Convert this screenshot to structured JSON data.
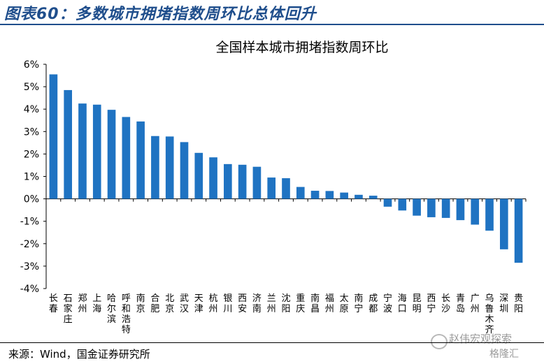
{
  "figure_title": "图表60：多数城市拥堵指数周环比总体回升",
  "source": "来源：Wind，国金证券研究所",
  "watermark": "赵伟宏观探索",
  "watermark2": "格隆汇",
  "colors": {
    "bar": "#1f73c2",
    "title": "#1f4e8c"
  },
  "chart_data": {
    "type": "bar",
    "title": "全国样本城市拥堵指数周环比",
    "xlabel": "",
    "ylabel": "",
    "ylim": [
      -4,
      6
    ],
    "yticks": [
      "6%",
      "5%",
      "4%",
      "3%",
      "2%",
      "1%",
      "0%",
      "-1%",
      "-2%",
      "-3%",
      "-4%"
    ],
    "grid": false,
    "categories": [
      "长春",
      "石家庄",
      "郑州",
      "上海",
      "哈尔滨",
      "呼和浩特",
      "南京",
      "合肥",
      "北京",
      "武汉",
      "天津",
      "杭州",
      "银川",
      "西安",
      "济南",
      "兰州",
      "沈阳",
      "重庆",
      "南昌",
      "福州",
      "太原",
      "南宁",
      "成都",
      "宁波",
      "海口",
      "昆明",
      "西宁",
      "长沙",
      "青岛",
      "广州",
      "乌鲁木齐",
      "深圳",
      "贵阳"
    ],
    "values": [
      5.55,
      4.85,
      4.25,
      4.2,
      3.97,
      3.65,
      3.45,
      2.8,
      2.78,
      2.53,
      2.05,
      1.85,
      1.55,
      1.52,
      1.43,
      0.95,
      0.92,
      0.53,
      0.36,
      0.35,
      0.28,
      0.18,
      0.14,
      -0.35,
      -0.52,
      -0.75,
      -0.82,
      -0.85,
      -0.95,
      -1.15,
      -1.42,
      -2.25,
      -2.85
    ]
  }
}
